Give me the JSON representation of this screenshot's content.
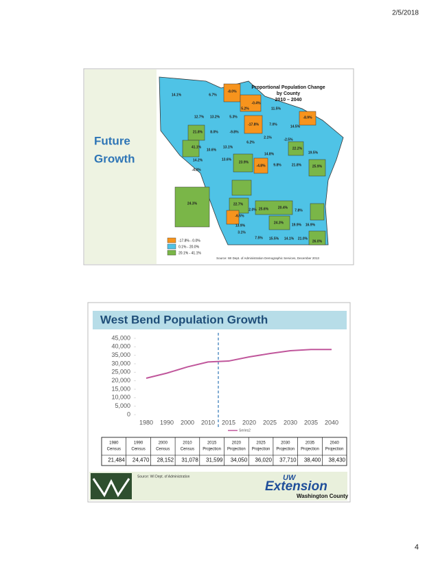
{
  "header": {
    "date": "2/5/2018"
  },
  "page_number": "4",
  "slide1": {
    "title_lines": [
      "Future",
      "Growth"
    ],
    "map": {
      "title_lines": [
        "Proportional Population Change",
        "by County",
        "2010 – 2040"
      ],
      "legend": [
        {
          "label": "-17.8% - 0.0%",
          "color": "#f7941d"
        },
        {
          "label": "0.1% - 20.0%",
          "color": "#4fc3e6"
        },
        {
          "label": "20.1% - 41.1%",
          "color": "#7ab648"
        }
      ],
      "source": "Source: WI Dept. of Administration Demographic Services, December 2013",
      "county_labels": [
        "14.1%",
        "6.7%",
        "-8.0%",
        "-0.4%",
        "5.2%",
        "11.5%",
        "-8.9%",
        "12.7%",
        "13.2%",
        "5.3%",
        "-17.8%",
        "7.0%",
        "14.5%",
        "21.8%",
        "8.0%",
        "-9.8%",
        "6.2%",
        "2.1%",
        "-2.5%",
        "41.1%",
        "10.6%",
        "13.1%",
        "14.8%",
        "22.2%",
        "19.5%",
        "14.2%",
        "-4.3%",
        "13.6%",
        "23.9%",
        "-4.8%",
        "9.8%",
        "21.8%",
        "25.9%",
        "24.3%",
        "22.7%",
        "2.0%",
        "25.6%",
        "20.4%",
        "7.8%",
        "-6.5%",
        "13.9%",
        "24.3%",
        "19.9%",
        "16.9%",
        "3.1%",
        "7.5%",
        "15.5%",
        "14.1%",
        "21.0%",
        "26.0%"
      ]
    }
  },
  "chart_data": {
    "type": "line",
    "title": "West Bend Population Growth",
    "categories": [
      "1980",
      "1990",
      "2000",
      "2010",
      "2015",
      "2020",
      "2025",
      "2030",
      "2035",
      "2040"
    ],
    "series": [
      {
        "name": "Series2",
        "color": "#c0569b",
        "values": [
          21484,
          24470,
          28152,
          31078,
          31599,
          34050,
          36020,
          37710,
          38400,
          38430
        ]
      }
    ],
    "ylim": [
      0,
      45000
    ],
    "yticks": [
      0,
      {
        "value": 5000,
        "label": "5,000"
      },
      {
        "value": 10000,
        "label": "10,000"
      },
      {
        "value": 15000,
        "label": "15,000"
      },
      {
        "value": 20000,
        "label": "20,000"
      },
      {
        "value": 25000,
        "label": "25,000"
      },
      {
        "value": 30000,
        "label": "30,000"
      },
      {
        "value": 35000,
        "label": "35,000"
      },
      {
        "value": 40000,
        "label": "40,000"
      },
      {
        "value": 45000,
        "label": "45,000"
      }
    ],
    "legend": "bottom"
  },
  "table": {
    "header": [
      [
        "1980",
        "Census"
      ],
      [
        "1990",
        "Census"
      ],
      [
        "2000",
        "Census"
      ],
      [
        "2010",
        "Census"
      ],
      [
        "2015",
        "Projection"
      ],
      [
        "2020",
        "Projection"
      ],
      [
        "2025",
        "Projection"
      ],
      [
        "2030",
        "Projection"
      ],
      [
        "2035",
        "Projection"
      ],
      [
        "2040",
        "Projection"
      ]
    ],
    "rows": [
      [
        "21,484",
        "24,470",
        "28,152",
        "31,078",
        "31,599",
        "34,050",
        "36,020",
        "37,710",
        "38,400",
        "38,430"
      ]
    ]
  },
  "footer": {
    "source": "Source: WI Dept. of Administration",
    "logo": {
      "uw": "UW",
      "extension": "Extension",
      "county": "Washington County"
    }
  }
}
